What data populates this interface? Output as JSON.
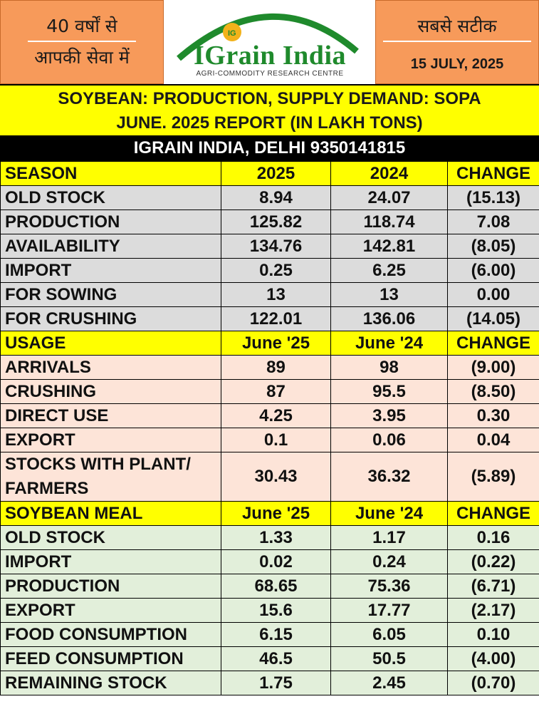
{
  "header": {
    "left_line1": "40 वर्षों से",
    "left_line2": "आपकी सेवा में",
    "right_line1": "सबसे सटीक",
    "date": "15 JULY, 2025",
    "logo_title": "IGrain India",
    "logo_sub": "AGRI-COMMODITY RESEARCH CENTRE",
    "logo_mark": "IG"
  },
  "title": {
    "line1": "SOYBEAN: PRODUCTION, SUPPLY DEMAND: SOPA",
    "line2": "JUNE. 2025 REPORT (IN LAKH TONS)",
    "subtitle": "IGRAIN INDIA, DELHI 9350141815"
  },
  "colors": {
    "header_orange": "#f79a5a",
    "yellow": "#ffff00",
    "negative": "#e8001c",
    "positive": "#13a538"
  },
  "sections": [
    {
      "headers": [
        "SEASON",
        "2025",
        "2024",
        "CHANGE"
      ],
      "rows": [
        [
          "OLD STOCK",
          "8.94",
          "24.07",
          "(15.13)"
        ],
        [
          "PRODUCTION",
          "125.82",
          "118.74",
          "7.08"
        ],
        [
          "AVAILABILITY",
          "134.76",
          "142.81",
          "(8.05)"
        ],
        [
          "IMPORT",
          "0.25",
          "6.25",
          "(6.00)"
        ],
        [
          "FOR SOWING",
          "13",
          "13",
          "0.00"
        ],
        [
          "FOR CRUSHING",
          "122.01",
          "136.06",
          "(14.05)"
        ]
      ]
    },
    {
      "headers": [
        "USAGE",
        "June '25",
        "June '24",
        "CHANGE"
      ],
      "rows": [
        [
          "ARRIVALS",
          "89",
          "98",
          "(9.00)"
        ],
        [
          "CRUSHING",
          "87",
          "95.5",
          "(8.50)"
        ],
        [
          "DIRECT USE",
          "4.25",
          "3.95",
          "0.30"
        ],
        [
          "EXPORT",
          "0.1",
          "0.06",
          "0.04"
        ],
        [
          "STOCKS WITH PLANT/ FARMERS",
          "30.43",
          "36.32",
          "(5.89)"
        ]
      ]
    },
    {
      "headers": [
        "SOYBEAN MEAL",
        "June '25",
        "June '24",
        "CHANGE"
      ],
      "rows": [
        [
          "OLD STOCK",
          "1.33",
          "1.17",
          "0.16"
        ],
        [
          "IMPORT",
          "0.02",
          "0.24",
          "(0.22)"
        ],
        [
          "PRODUCTION",
          "68.65",
          "75.36",
          "(6.71)"
        ],
        [
          "EXPORT",
          "15.6",
          "17.77",
          "(2.17)"
        ],
        [
          "FOOD CONSUMPTION",
          "6.15",
          "6.05",
          "0.10"
        ],
        [
          "FEED CONSUMPTION",
          "46.5",
          "50.5",
          "(4.00)"
        ],
        [
          "REMAINING STOCK",
          "1.75",
          "2.45",
          "(0.70)"
        ]
      ]
    }
  ]
}
